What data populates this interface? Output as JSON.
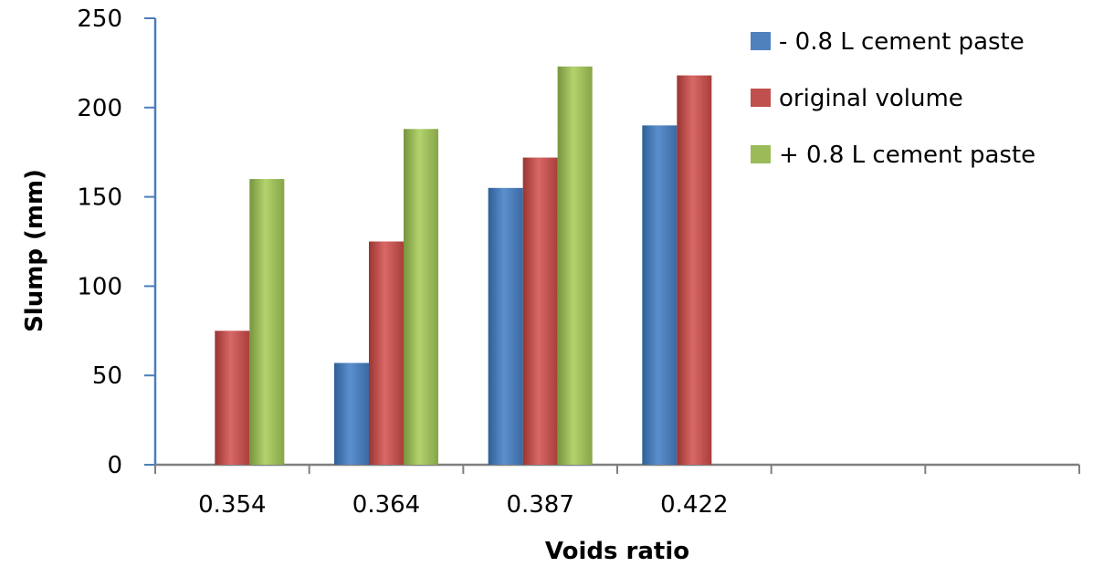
{
  "chart_data": {
    "type": "bar",
    "title": "",
    "xlabel": "Voids ratio",
    "ylabel": "Slump (mm)",
    "ylim": [
      0,
      250
    ],
    "yticks": [
      "0",
      "50",
      "100",
      "150",
      "200",
      "250"
    ],
    "categories": [
      "0.354",
      "0.364",
      "0.387",
      "0.422",
      "",
      ""
    ],
    "series": [
      {
        "name": "- 0.8 L cement paste",
        "color": "#4F81BD",
        "values": [
          null,
          57,
          155,
          190,
          null,
          null
        ]
      },
      {
        "name": "original volume",
        "color": "#C0504D",
        "values": [
          75,
          125,
          172,
          218,
          null,
          null
        ]
      },
      {
        "name": "+ 0.8 L cement paste",
        "color": "#9BBB59",
        "values": [
          160,
          188,
          223,
          null,
          null,
          null
        ]
      }
    ],
    "legend_position": "top-right",
    "grid": false
  }
}
